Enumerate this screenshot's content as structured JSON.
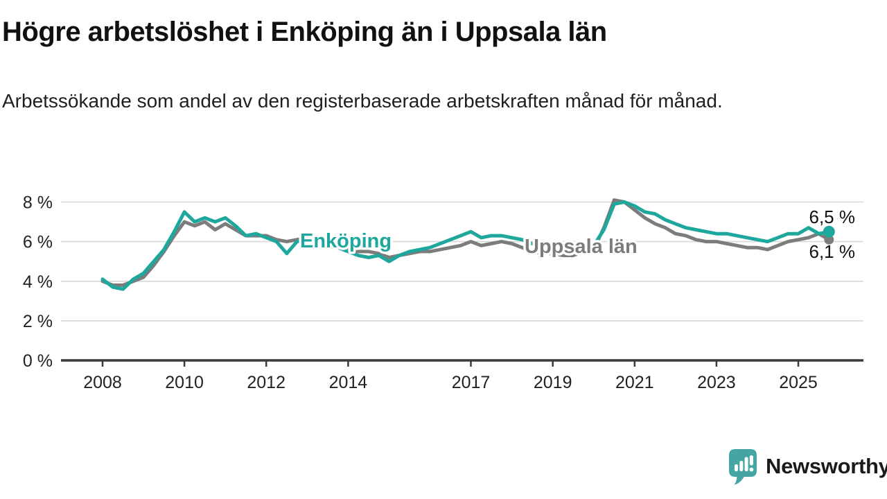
{
  "header": {
    "title": "Högre arbetslöshet i Enköping än i Uppsala län",
    "subtitle": "Arbetssökande som andel av den registerbaserade arbetskraften månad för månad."
  },
  "footer": {
    "brand": "Newsworthy",
    "logo_icon": "newsworthy-speech-bubble-bar-chart-icon",
    "brand_color": "#2f9f9f",
    "logo_bubble_color": "#44a5a3"
  },
  "colors": {
    "enkoping_teal": "#1ea79c",
    "uppsala_gray": "#7c7c7c",
    "axis_dark": "#3b3b3b",
    "gridline_gray": "#d8d8d8",
    "background": "#ffffff"
  },
  "chart_data": {
    "type": "line",
    "title": "Högre arbetslöshet i Enköping än i Uppsala län",
    "subtitle": "Arbetssökande som andel av den registerbaserade arbetskraften månad för månad.",
    "ylabel": "",
    "xlabel": "",
    "ylim": [
      0,
      8.6
    ],
    "grid": "horizontal",
    "legend_position": "inline-labels-on-lines",
    "x_unit": "decimal year (monthly series approximated at quarterly resolution)",
    "x_start": 2008.0,
    "x_step": 0.25,
    "x_end": 2025.75,
    "yticks": [
      0,
      2,
      4,
      6,
      8
    ],
    "ytick_labels": [
      "0 %",
      "2 %",
      "4 %",
      "6 %",
      "8 %"
    ],
    "xticks": [
      2008,
      2010,
      2012,
      2014,
      2017,
      2019,
      2021,
      2023,
      2025
    ],
    "xtick_labels": [
      "2008",
      "2010",
      "2012",
      "2014",
      "2017",
      "2019",
      "2021",
      "2023",
      "2025"
    ],
    "series": [
      {
        "name": "Enköping",
        "color": "#1ea79c",
        "end_label": "6,5 %",
        "end_value": 6.5,
        "values": [
          4.1,
          3.7,
          3.6,
          4.1,
          4.4,
          5.0,
          5.6,
          6.5,
          7.5,
          7.0,
          7.2,
          7.0,
          7.2,
          6.8,
          6.3,
          6.4,
          6.2,
          6.0,
          5.4,
          6.0,
          6.1,
          6.0,
          5.9,
          5.7,
          5.5,
          5.3,
          5.2,
          5.3,
          5.0,
          5.3,
          5.5,
          5.6,
          5.7,
          5.9,
          6.1,
          6.3,
          6.5,
          6.2,
          6.3,
          6.3,
          6.2,
          6.1,
          5.9,
          5.7,
          5.7,
          5.6,
          5.6,
          5.7,
          5.8,
          6.6,
          7.9,
          8.0,
          7.8,
          7.5,
          7.4,
          7.1,
          6.9,
          6.7,
          6.6,
          6.5,
          6.4,
          6.4,
          6.3,
          6.2,
          6.1,
          6.0,
          6.2,
          6.4,
          6.4,
          6.7,
          6.4,
          6.5
        ]
      },
      {
        "name": "Uppsala län",
        "color": "#7c7c7c",
        "end_label": "6,1 %",
        "end_value": 6.1,
        "values": [
          4.0,
          3.8,
          3.8,
          4.0,
          4.2,
          4.8,
          5.5,
          6.3,
          7.0,
          6.8,
          7.0,
          6.6,
          6.9,
          6.6,
          6.3,
          6.3,
          6.3,
          6.1,
          6.0,
          6.1,
          6.2,
          6.1,
          6.0,
          5.8,
          5.6,
          5.5,
          5.5,
          5.4,
          5.2,
          5.3,
          5.4,
          5.5,
          5.5,
          5.6,
          5.7,
          5.8,
          6.0,
          5.8,
          5.9,
          6.0,
          5.9,
          5.7,
          5.5,
          5.4,
          5.4,
          5.3,
          5.3,
          5.5,
          5.6,
          6.7,
          8.1,
          8.0,
          7.6,
          7.2,
          6.9,
          6.7,
          6.4,
          6.3,
          6.1,
          6.0,
          6.0,
          5.9,
          5.8,
          5.7,
          5.7,
          5.6,
          5.8,
          6.0,
          6.1,
          6.2,
          6.4,
          6.1
        ]
      }
    ]
  }
}
